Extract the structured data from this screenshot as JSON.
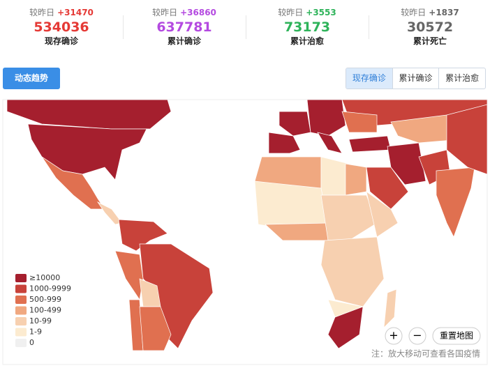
{
  "stats": [
    {
      "label": "较昨日",
      "delta": "+31470",
      "value": 534036,
      "caption": "现存确诊",
      "color": "#e53935"
    },
    {
      "label": "较昨日",
      "delta": "+36860",
      "value": 637781,
      "caption": "累计确诊",
      "color": "#b44ae0"
    },
    {
      "label": "较昨日",
      "delta": "+3553",
      "value": 73173,
      "caption": "累计治愈",
      "color": "#2eb35a"
    },
    {
      "label": "较昨日",
      "delta": "+1837",
      "value": 30572,
      "caption": "累计死亡",
      "color": "#666666"
    }
  ],
  "trend_button": "动态趋势",
  "tabs": [
    "现存确诊",
    "累计确诊",
    "累计治愈"
  ],
  "legend": [
    {
      "label": "≥10000",
      "color": "#a51f2e"
    },
    {
      "label": "1000-9999",
      "color": "#c8423a"
    },
    {
      "label": "500-999",
      "color": "#e07050"
    },
    {
      "label": "100-499",
      "color": "#f0a880"
    },
    {
      "label": "10-99",
      "color": "#f7d0b0"
    },
    {
      "label": "1-9",
      "color": "#fcebd0"
    },
    {
      "label": "0",
      "color": "#f0f0f0"
    }
  ],
  "zoom_in": "+",
  "zoom_out": "−",
  "reset_button": "重置地图",
  "note": "注：放大移动可查看各国疫情"
}
